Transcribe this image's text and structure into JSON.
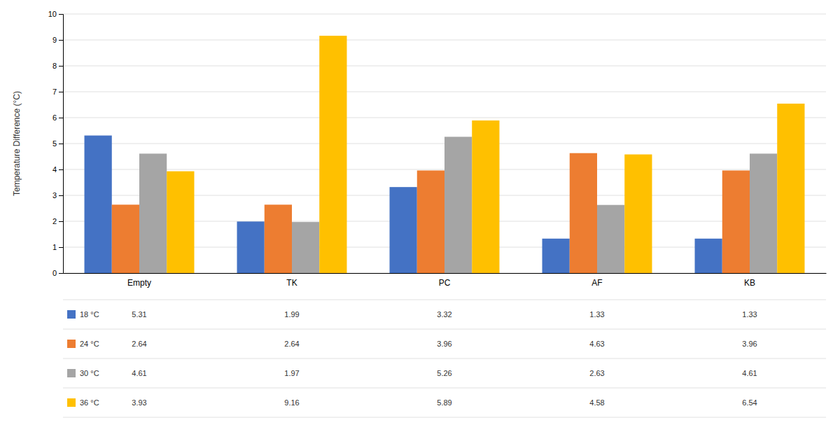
{
  "chart_data": {
    "type": "bar",
    "categories": [
      "Empty",
      "TK",
      "PC",
      "AF",
      "KB"
    ],
    "series": [
      {
        "name": "18 °C",
        "color": "#4472C4",
        "values": [
          5.31,
          1.99,
          3.32,
          1.33,
          1.33
        ]
      },
      {
        "name": "24 °C",
        "color": "#ED7D31",
        "values": [
          2.64,
          2.64,
          3.96,
          4.63,
          3.96
        ]
      },
      {
        "name": "30 °C",
        "color": "#A5A5A5",
        "values": [
          4.61,
          1.97,
          5.26,
          2.63,
          4.61
        ]
      },
      {
        "name": "36 °C",
        "color": "#FFC000",
        "values": [
          3.93,
          9.16,
          5.89,
          4.58,
          6.54
        ]
      }
    ],
    "ylabel": "Temperature Difference (°C)",
    "ylim": [
      0,
      10
    ],
    "yticks": [
      0,
      1,
      2,
      3,
      4,
      5,
      6,
      7,
      8,
      9,
      10
    ],
    "grid": true,
    "data_labels": true
  }
}
